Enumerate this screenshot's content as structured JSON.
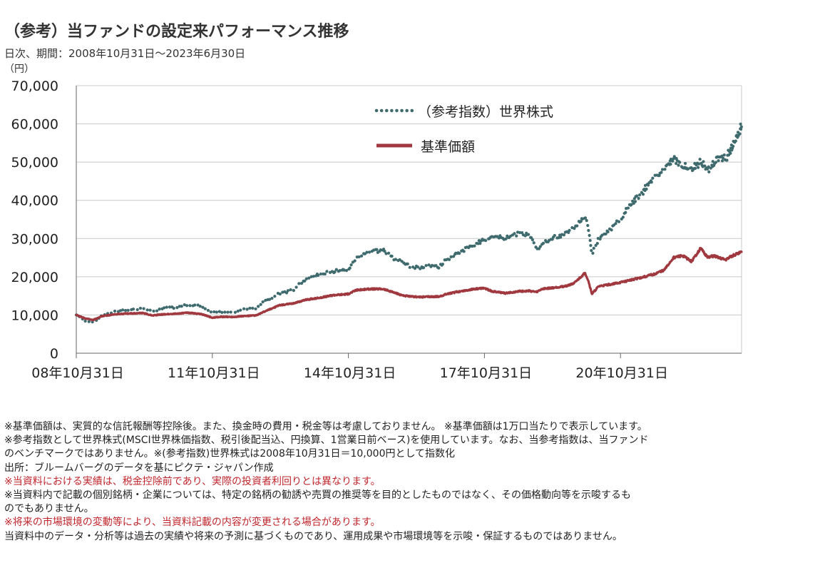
{
  "header": {
    "title": "（参考）当ファンドの設定来パフォーマンス推移",
    "subtitle": "日次、期間：2008年10月31日～2023年6月30日",
    "unit": "（円）"
  },
  "chart_data": {
    "type": "line",
    "ylim": [
      0,
      70000
    ],
    "yticks": [
      "70,000",
      "60,000",
      "50,000",
      "40,000",
      "30,000",
      "20,000",
      "10,000",
      "0"
    ],
    "x_tick_labels": [
      "08年10月31日",
      "11年10月31日",
      "14年10月31日",
      "17年10月31日",
      "20年10月31日"
    ],
    "x_tick_years": [
      2008.83,
      2011.83,
      2014.83,
      2017.83,
      2020.83
    ],
    "xlim": [
      2008.83,
      2023.5
    ],
    "legend_position": "upper center",
    "grid": "horizontal",
    "series": [
      {
        "name": "（参考指数）世界株式",
        "style": "dotted",
        "color": "#3f6b6e",
        "points": [
          [
            2008.83,
            10000
          ],
          [
            2009.0,
            8600
          ],
          [
            2009.2,
            8000
          ],
          [
            2009.4,
            9800
          ],
          [
            2009.7,
            11000
          ],
          [
            2010.0,
            11400
          ],
          [
            2010.3,
            11800
          ],
          [
            2010.5,
            11000
          ],
          [
            2010.8,
            11800
          ],
          [
            2011.0,
            12000
          ],
          [
            2011.3,
            12600
          ],
          [
            2011.6,
            12300
          ],
          [
            2011.83,
            10600
          ],
          [
            2012.0,
            10800
          ],
          [
            2012.3,
            10700
          ],
          [
            2012.5,
            11400
          ],
          [
            2012.8,
            11800
          ],
          [
            2013.0,
            13800
          ],
          [
            2013.3,
            15500
          ],
          [
            2013.6,
            16500
          ],
          [
            2013.9,
            19500
          ],
          [
            2014.2,
            20500
          ],
          [
            2014.5,
            21500
          ],
          [
            2014.83,
            22000
          ],
          [
            2015.0,
            25000
          ],
          [
            2015.3,
            26500
          ],
          [
            2015.6,
            27000
          ],
          [
            2015.8,
            25000
          ],
          [
            2016.0,
            24000
          ],
          [
            2016.2,
            22500
          ],
          [
            2016.4,
            22500
          ],
          [
            2016.6,
            23000
          ],
          [
            2016.83,
            22500
          ],
          [
            2017.0,
            24500
          ],
          [
            2017.3,
            26500
          ],
          [
            2017.6,
            28500
          ],
          [
            2017.83,
            29500
          ],
          [
            2018.0,
            30500
          ],
          [
            2018.3,
            30000
          ],
          [
            2018.6,
            31500
          ],
          [
            2018.83,
            31000
          ],
          [
            2018.98,
            27000
          ],
          [
            2019.1,
            28500
          ],
          [
            2019.4,
            30500
          ],
          [
            2019.6,
            31000
          ],
          [
            2019.8,
            32500
          ],
          [
            2020.05,
            36000
          ],
          [
            2020.12,
            32500
          ],
          [
            2020.2,
            26000
          ],
          [
            2020.35,
            30000
          ],
          [
            2020.6,
            32500
          ],
          [
            2020.83,
            35000
          ],
          [
            2021.0,
            38000
          ],
          [
            2021.3,
            42000
          ],
          [
            2021.6,
            46000
          ],
          [
            2021.8,
            48000
          ],
          [
            2022.0,
            51000
          ],
          [
            2022.2,
            49000
          ],
          [
            2022.4,
            48000
          ],
          [
            2022.6,
            50000
          ],
          [
            2022.75,
            48000
          ],
          [
            2022.9,
            50000
          ],
          [
            2023.0,
            51500
          ],
          [
            2023.15,
            51000
          ],
          [
            2023.3,
            54000
          ],
          [
            2023.5,
            59500
          ]
        ]
      },
      {
        "name": "基準価額",
        "style": "solid",
        "color": "#a0393f",
        "points": [
          [
            2008.83,
            10000
          ],
          [
            2009.0,
            9200
          ],
          [
            2009.2,
            8700
          ],
          [
            2009.4,
            9700
          ],
          [
            2009.7,
            10200
          ],
          [
            2010.0,
            10400
          ],
          [
            2010.3,
            10500
          ],
          [
            2010.5,
            9900
          ],
          [
            2010.8,
            10200
          ],
          [
            2011.0,
            10300
          ],
          [
            2011.3,
            10600
          ],
          [
            2011.6,
            10200
          ],
          [
            2011.83,
            9300
          ],
          [
            2012.0,
            9500
          ],
          [
            2012.3,
            9500
          ],
          [
            2012.5,
            9700
          ],
          [
            2012.8,
            9900
          ],
          [
            2013.0,
            11000
          ],
          [
            2013.3,
            12500
          ],
          [
            2013.6,
            13000
          ],
          [
            2013.9,
            14000
          ],
          [
            2014.2,
            14500
          ],
          [
            2014.5,
            15200
          ],
          [
            2014.83,
            15500
          ],
          [
            2015.0,
            16500
          ],
          [
            2015.3,
            16800
          ],
          [
            2015.6,
            16800
          ],
          [
            2015.8,
            16000
          ],
          [
            2016.0,
            15200
          ],
          [
            2016.2,
            14800
          ],
          [
            2016.4,
            14700
          ],
          [
            2016.6,
            14800
          ],
          [
            2016.83,
            14800
          ],
          [
            2017.0,
            15500
          ],
          [
            2017.3,
            16200
          ],
          [
            2017.6,
            16800
          ],
          [
            2017.83,
            17000
          ],
          [
            2018.0,
            16200
          ],
          [
            2018.3,
            15700
          ],
          [
            2018.6,
            16200
          ],
          [
            2018.83,
            16300
          ],
          [
            2018.98,
            16000
          ],
          [
            2019.1,
            16800
          ],
          [
            2019.4,
            17200
          ],
          [
            2019.6,
            17500
          ],
          [
            2019.8,
            18200
          ],
          [
            2020.05,
            21000
          ],
          [
            2020.12,
            19000
          ],
          [
            2020.2,
            15500
          ],
          [
            2020.35,
            17500
          ],
          [
            2020.6,
            18000
          ],
          [
            2020.83,
            18500
          ],
          [
            2021.0,
            19000
          ],
          [
            2021.3,
            19800
          ],
          [
            2021.6,
            20800
          ],
          [
            2021.8,
            21800
          ],
          [
            2022.0,
            25000
          ],
          [
            2022.2,
            25500
          ],
          [
            2022.4,
            24000
          ],
          [
            2022.6,
            27500
          ],
          [
            2022.75,
            25000
          ],
          [
            2022.9,
            25500
          ],
          [
            2023.0,
            25000
          ],
          [
            2023.15,
            24500
          ],
          [
            2023.3,
            25500
          ],
          [
            2023.5,
            26500
          ]
        ]
      }
    ]
  },
  "notes": [
    {
      "text": "※基準価額は、実質的な信託報酬等控除後。また、換金時の費用・税金等は考慮しておりません。 ※基準価額は1万口当たりで表示しています。",
      "red": false
    },
    {
      "text": "※参考指数として世界株式(MSCI世界株価指数、税引後配当込、円換算、1営業日前ベース)を使用しています。なお、当参考指数は、当ファンド",
      "red": false
    },
    {
      "text": "のベンチマークではありません。※(参考指数)世界株式は2008年10月31日＝10,000円として指数化",
      "red": false
    },
    {
      "text": "出所：ブルームバーグのデータを基にピクテ・ジャパン作成",
      "red": false
    },
    {
      "text": "※当資料における実績は、税金控除前であり、実際の投資者利回りとは異なります。",
      "red": true
    },
    {
      "text": "※当資料内で記載の個別銘柄・企業については、特定の銘柄の勧誘や売買の推奨等を目的としたものではなく、その価格動向等を示唆するも",
      "red": false
    },
    {
      "text": "のでもありません。",
      "red": false
    },
    {
      "text": "※将来の市場環境の変動等により、当資料記載の内容が変更される場合があります。",
      "red": true
    },
    {
      "text": "当資料中のデータ・分析等は過去の実績や将来の予測に基づくものであり、運用成果や市場環境等を示唆・保証するものではありません。",
      "red": false
    }
  ]
}
